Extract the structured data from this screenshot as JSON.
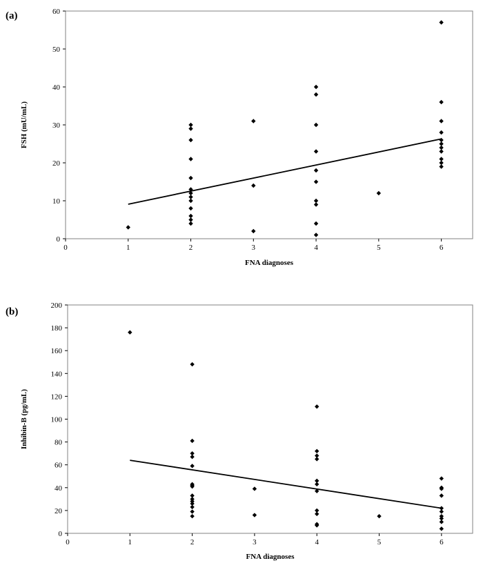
{
  "chart_data": [
    {
      "type": "scatter",
      "panel_label": "(a)",
      "title": "",
      "xlabel": "FNA diagnoses",
      "ylabel": "FSH (mU/mL)",
      "xlim": [
        0,
        6.5
      ],
      "ylim": [
        0,
        60
      ],
      "xticks": [
        0,
        1,
        2,
        3,
        4,
        5,
        6
      ],
      "yticks": [
        0,
        10,
        20,
        30,
        40,
        50,
        60
      ],
      "grid": false,
      "points": [
        [
          1,
          3
        ],
        [
          2,
          30
        ],
        [
          2,
          29
        ],
        [
          2,
          26
        ],
        [
          2,
          21
        ],
        [
          2,
          16
        ],
        [
          2,
          13
        ],
        [
          2,
          12
        ],
        [
          2,
          11
        ],
        [
          2,
          10
        ],
        [
          2,
          8
        ],
        [
          2,
          6
        ],
        [
          2,
          5
        ],
        [
          2,
          4
        ],
        [
          3,
          31
        ],
        [
          3,
          14
        ],
        [
          3,
          2
        ],
        [
          4,
          40
        ],
        [
          4,
          38
        ],
        [
          4,
          30
        ],
        [
          4,
          23
        ],
        [
          4,
          18
        ],
        [
          4,
          15
        ],
        [
          4,
          10
        ],
        [
          4,
          9
        ],
        [
          4,
          4
        ],
        [
          4,
          1
        ],
        [
          5,
          12
        ],
        [
          6,
          57
        ],
        [
          6,
          36
        ],
        [
          6,
          31
        ],
        [
          6,
          28
        ],
        [
          6,
          26
        ],
        [
          6,
          25
        ],
        [
          6,
          24
        ],
        [
          6,
          23
        ],
        [
          6,
          21
        ],
        [
          6,
          20
        ],
        [
          6,
          19
        ]
      ],
      "trendline": [
        [
          1,
          9.1
        ],
        [
          6,
          26.3
        ]
      ]
    },
    {
      "type": "scatter",
      "panel_label": "(b)",
      "title": "",
      "xlabel": "FNA diagnoses",
      "ylabel": "Inhibin-B (pg/mL)",
      "xlim": [
        0,
        6.5
      ],
      "ylim": [
        0,
        200
      ],
      "xticks": [
        0,
        1,
        2,
        3,
        4,
        5,
        6
      ],
      "yticks": [
        0,
        20,
        40,
        60,
        80,
        100,
        120,
        140,
        160,
        180,
        200
      ],
      "grid": false,
      "points": [
        [
          1,
          176
        ],
        [
          2,
          148
        ],
        [
          2,
          81
        ],
        [
          2,
          70
        ],
        [
          2,
          67
        ],
        [
          2,
          59
        ],
        [
          2,
          43
        ],
        [
          2,
          42
        ],
        [
          2,
          41
        ],
        [
          2,
          33
        ],
        [
          2,
          30
        ],
        [
          2,
          28
        ],
        [
          2,
          26
        ],
        [
          2,
          23
        ],
        [
          2,
          19
        ],
        [
          2,
          15
        ],
        [
          3,
          39
        ],
        [
          3,
          16
        ],
        [
          4,
          111
        ],
        [
          4,
          72
        ],
        [
          4,
          68
        ],
        [
          4,
          65
        ],
        [
          4,
          46
        ],
        [
          4,
          43
        ],
        [
          4,
          37
        ],
        [
          4,
          20
        ],
        [
          4,
          17
        ],
        [
          4,
          8
        ],
        [
          4,
          7
        ],
        [
          5,
          15
        ],
        [
          6,
          48
        ],
        [
          6,
          40
        ],
        [
          6,
          39
        ],
        [
          6,
          33
        ],
        [
          6,
          22
        ],
        [
          6,
          19
        ],
        [
          6,
          15
        ],
        [
          6,
          13
        ],
        [
          6,
          10
        ],
        [
          6,
          4
        ]
      ],
      "trendline": [
        [
          1,
          64
        ],
        [
          6,
          22
        ]
      ]
    }
  ]
}
